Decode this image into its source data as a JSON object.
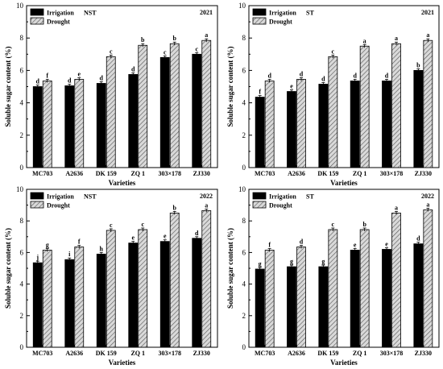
{
  "legend_labels": {
    "irrigation": "Irrigation",
    "drought": "Drought"
  },
  "colors": {
    "irrigation": "#000000",
    "drought": "#d9d9d9",
    "hatch": "#555555",
    "axis": "#000000"
  },
  "chart_data": [
    {
      "type": "bar",
      "year": "2021",
      "treatment": "NST",
      "xlabel": "Varieties",
      "ylabel": "Soluble sugar content (%)",
      "ylim": [
        0,
        10
      ],
      "yticks": [
        0,
        2,
        4,
        6,
        8,
        10
      ],
      "legend_position": "top-left",
      "categories": [
        "MC703",
        "A2636",
        "DK 159",
        "ZQ 1",
        "303×178",
        "ZJ330"
      ],
      "series": [
        {
          "name": "Irrigation",
          "values": [
            5.0,
            5.05,
            5.2,
            5.75,
            6.8,
            7.0
          ],
          "letters": [
            "d",
            "d",
            "d",
            "d",
            "c",
            "c"
          ]
        },
        {
          "name": "Drought",
          "values": [
            5.35,
            5.45,
            6.85,
            7.55,
            7.65,
            7.85
          ],
          "letters": [
            "f",
            "e",
            "c",
            "b",
            "b",
            "a"
          ]
        }
      ]
    },
    {
      "type": "bar",
      "year": "2021",
      "treatment": "ST",
      "xlabel": "Varieties",
      "ylabel": "Soluble sugar content (%)",
      "ylim": [
        0,
        10
      ],
      "yticks": [
        0,
        2,
        4,
        6,
        8,
        10
      ],
      "legend_position": "top-left",
      "categories": [
        "MC703",
        "A2636",
        "DK 159",
        "ZQ 1",
        "303×178",
        "ZJ330"
      ],
      "series": [
        {
          "name": "Irrigation",
          "values": [
            4.35,
            4.7,
            5.15,
            5.35,
            5.35,
            6.0
          ],
          "letters": [
            "f",
            "e",
            "d",
            "d",
            "d",
            "b"
          ]
        },
        {
          "name": "Drought",
          "values": [
            5.35,
            5.45,
            6.85,
            7.5,
            7.65,
            7.85
          ],
          "letters": [
            "d",
            "d",
            "c",
            "a",
            "a",
            "a"
          ]
        }
      ]
    },
    {
      "type": "bar",
      "year": "2022",
      "treatment": "NST",
      "xlabel": "Varieties",
      "ylabel": "Soluble sugar content (%)",
      "ylim": [
        0,
        10
      ],
      "yticks": [
        0,
        2,
        4,
        6,
        8,
        10
      ],
      "legend_position": "top-left",
      "categories": [
        "MC703",
        "A2636",
        "DK 159",
        "ZQ 1",
        "303×178",
        "ZJ330"
      ],
      "series": [
        {
          "name": "Irrigation",
          "values": [
            5.35,
            5.55,
            5.9,
            6.6,
            6.7,
            6.9
          ],
          "letters": [
            "j",
            "i",
            "h",
            "e",
            "e",
            "d"
          ]
        },
        {
          "name": "Drought",
          "values": [
            6.15,
            6.35,
            7.4,
            7.45,
            8.5,
            8.65
          ],
          "letters": [
            "g",
            "f",
            "c",
            "c",
            "b",
            "a"
          ]
        }
      ]
    },
    {
      "type": "bar",
      "year": "2022",
      "treatment": "ST",
      "xlabel": "Varieties",
      "ylabel": "Soluble sugar content (%)",
      "ylim": [
        0,
        10
      ],
      "yticks": [
        0,
        2,
        4,
        6,
        8,
        10
      ],
      "legend_position": "top-left",
      "categories": [
        "MC703",
        "A2636",
        "DK 159",
        "ZQ 1",
        "303×178",
        "ZJ330"
      ],
      "series": [
        {
          "name": "Irrigation",
          "values": [
            4.95,
            5.1,
            5.1,
            6.15,
            6.2,
            6.55
          ],
          "letters": [
            "g",
            "g",
            "g",
            "e",
            "e",
            "d"
          ]
        },
        {
          "name": "Drought",
          "values": [
            6.15,
            6.35,
            7.45,
            7.45,
            8.5,
            8.7
          ],
          "letters": [
            "f",
            "d",
            "c",
            "b",
            "a",
            "a"
          ]
        }
      ]
    }
  ]
}
